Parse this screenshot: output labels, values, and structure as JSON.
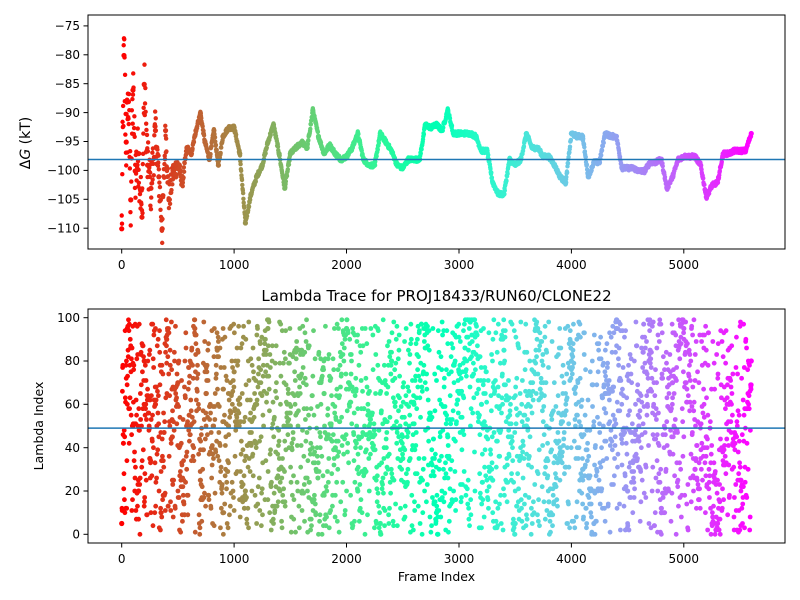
{
  "chart_data": [
    {
      "type": "scatter",
      "title": "",
      "xlabel": "",
      "ylabel": "ΔG (kT)",
      "ylabel_parts": {
        "delta": "Δ",
        "symbol": "G",
        "unit": " (kT)"
      },
      "xlim": [
        -300,
        5900
      ],
      "ylim": [
        -113.5,
        -73
      ],
      "xticks": [
        0,
        1000,
        2000,
        3000,
        4000,
        5000
      ],
      "xtick_labels": [
        "0",
        "1000",
        "2000",
        "3000",
        "4000",
        "5000"
      ],
      "yticks": [
        -110,
        -105,
        -100,
        -95,
        -90,
        -85,
        -80,
        -75
      ],
      "ytick_labels": [
        "−110",
        "−105",
        "−100",
        "−95",
        "−90",
        "−85",
        "−80",
        "−75"
      ],
      "reference_line": {
        "y": -98,
        "color": "#1f77b4"
      },
      "colormap": "rainbow (red at frame 0 to violet at frame 5600)",
      "grid": false,
      "series": [
        {
          "x": [
            0,
            20,
            40,
            60,
            80,
            100,
            120,
            150,
            180,
            200,
            230,
            260,
            300,
            330,
            360,
            390,
            420,
            460,
            500,
            540,
            580,
            620,
            660,
            700,
            740,
            780,
            820,
            860,
            900,
            950,
            1000,
            1050,
            1100,
            1150,
            1200,
            1250,
            1300,
            1350,
            1400,
            1450,
            1500,
            1550,
            1600,
            1650,
            1700,
            1750,
            1800,
            1850,
            1900,
            1950,
            2000,
            2050,
            2100,
            2150,
            2200,
            2250,
            2300,
            2350,
            2400,
            2450,
            2500,
            2550,
            2600,
            2650,
            2700,
            2750,
            2800,
            2850,
            2900,
            2950,
            3000,
            3050,
            3100,
            3150,
            3200,
            3250,
            3300,
            3350,
            3400,
            3450,
            3500,
            3550,
            3600,
            3650,
            3700,
            3750,
            3800,
            3850,
            3900,
            3950,
            4000,
            4050,
            4100,
            4150,
            4200,
            4250,
            4300,
            4350,
            4400,
            4450,
            4500,
            4550,
            4600,
            4650,
            4700,
            4750,
            4800,
            4850,
            4900,
            4950,
            5000,
            5050,
            5100,
            5150,
            5200,
            5250,
            5300,
            5350,
            5400,
            5450,
            5500,
            5550,
            5600
          ],
          "y": [
            -110,
            -80,
            -95,
            -88,
            -105,
            -86,
            -100,
            -97,
            -108,
            -85,
            -99,
            -103,
            -93,
            -101,
            -110,
            -93,
            -105,
            -100,
            -99,
            -102,
            -96,
            -97,
            -93,
            -90,
            -95,
            -98,
            -93,
            -99,
            -94,
            -92.5,
            -92.5,
            -97,
            -109,
            -104,
            -101,
            -99,
            -95,
            -92,
            -97,
            -103,
            -97,
            -96,
            -95,
            -96,
            -89.5,
            -94,
            -97,
            -95.5,
            -97,
            -98,
            -97.5,
            -96,
            -93.5,
            -98,
            -99,
            -99,
            -93.5,
            -95,
            -96.5,
            -99,
            -99.5,
            -98,
            -98,
            -98,
            -92,
            -92.5,
            -92,
            -93,
            -89.5,
            -93.5,
            -93.5,
            -93.5,
            -93.5,
            -94,
            -96.5,
            -96.5,
            -102,
            -104,
            -104,
            -98,
            -99,
            -98,
            -93.5,
            -96,
            -96,
            -97.5,
            -97.5,
            -99,
            -101,
            -102,
            -93.5,
            -94,
            -94,
            -101,
            -98.5,
            -98.5,
            -93.5,
            -94,
            -94,
            -99.5,
            -99.5,
            -99.5,
            -100,
            -100,
            -98.5,
            -98.5,
            -98,
            -103,
            -101,
            -98,
            -97.5,
            -97.5,
            -97.5,
            -99,
            -104.5,
            -102.5,
            -102,
            -97,
            -97,
            -96.5,
            -96.5,
            -96.5,
            -93.5
          ]
        }
      ]
    },
    {
      "type": "scatter",
      "title": "Lambda Trace for PROJ18433/RUN60/CLONE22",
      "xlabel": "Frame Index",
      "ylabel": "Lambda Index",
      "xlim": [
        -300,
        5900
      ],
      "ylim": [
        -4,
        104
      ],
      "xticks": [
        0,
        1000,
        2000,
        3000,
        4000,
        5000
      ],
      "xtick_labels": [
        "0",
        "1000",
        "2000",
        "3000",
        "4000",
        "5000"
      ],
      "yticks": [
        0,
        20,
        40,
        60,
        80,
        100
      ],
      "ytick_labels": [
        "0",
        "20",
        "40",
        "60",
        "80",
        "100"
      ],
      "reference_line": {
        "y": 49,
        "color": "#1f77b4"
      },
      "colormap": "rainbow (red at frame 0 to violet at frame 5600)",
      "grid": false,
      "description": "lambda index random-walks between 0 and 99 across frames 0 to 5600",
      "series": [
        {
          "x": [
            0,
            50,
            100,
            150,
            200,
            250,
            300,
            350,
            400,
            450,
            500,
            550,
            600,
            650,
            700,
            750,
            800,
            850,
            900,
            950,
            1000,
            1100,
            1200,
            1300,
            1400,
            1500,
            1600,
            1700,
            1800,
            1900,
            2000,
            2100,
            2200,
            2300,
            2400,
            2500,
            2600,
            2700,
            2800,
            2900,
            3000,
            3100,
            3200,
            3300,
            3400,
            3500,
            3600,
            3700,
            3800,
            3900,
            4000,
            4100,
            4200,
            4300,
            4400,
            4500,
            4600,
            4700,
            4800,
            4900,
            5000,
            5100,
            5200,
            5300,
            5400,
            5500,
            5600
          ],
          "y": [
            5,
            95,
            50,
            20,
            80,
            35,
            60,
            10,
            90,
            45,
            70,
            15,
            55,
            95,
            25,
            65,
            40,
            85,
            10,
            50,
            75,
            20,
            60,
            95,
            30,
            50,
            85,
            15,
            65,
            40,
            95,
            20,
            55,
            5,
            80,
            35,
            60,
            95,
            10,
            45,
            75,
            98,
            60,
            25,
            85,
            5,
            50,
            95,
            15,
            40,
            80,
            30,
            5,
            65,
            95,
            20,
            50,
            85,
            10,
            70,
            95,
            30,
            45,
            5,
            60,
            25,
            80
          ]
        }
      ]
    }
  ]
}
